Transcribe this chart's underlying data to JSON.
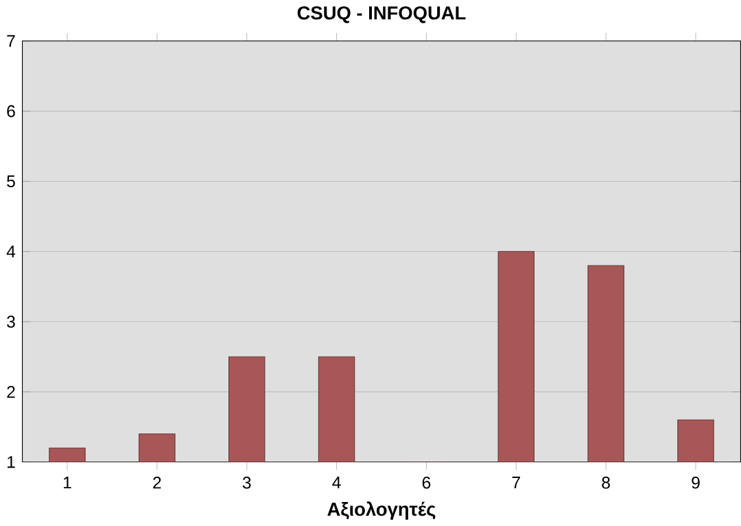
{
  "chart_data": {
    "type": "bar",
    "title": "CSUQ - INFOQUAL",
    "xlabel": "Αξιολογητές",
    "categories": [
      "1",
      "2",
      "3",
      "4",
      "6",
      "7",
      "8",
      "9"
    ],
    "values": [
      1.2,
      1.4,
      2.5,
      2.5,
      1.0,
      4.0,
      3.8,
      1.6
    ],
    "color": "#a85757",
    "ylim": [
      1,
      7
    ],
    "yticks": [
      1,
      2,
      3,
      4,
      5,
      6,
      7
    ],
    "grid": "y"
  }
}
